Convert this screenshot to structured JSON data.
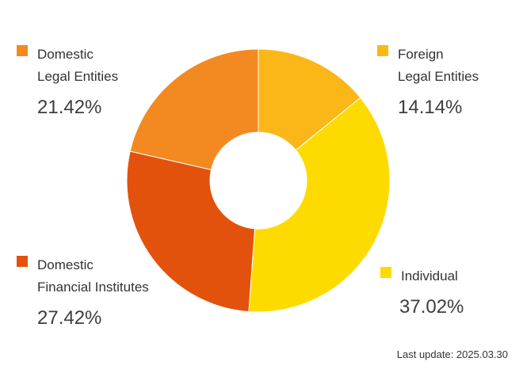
{
  "chart_data": {
    "type": "pie",
    "style": "donut",
    "categories": [
      "Foreign Legal Entities",
      "Individual",
      "Domestic Financial Institutes",
      "Domestic Legal Entities"
    ],
    "values": [
      14.14,
      37.02,
      27.42,
      21.42
    ],
    "value_labels": [
      "14.14%",
      "37.02%",
      "27.42%",
      "21.42%"
    ],
    "colors": [
      "#FBB717",
      "#FEDB00",
      "#E2520C",
      "#F38A21"
    ],
    "start_angle_deg": 0,
    "direction": "clockwise",
    "legend_placement": "around"
  },
  "legend": {
    "domestic_legal": {
      "line1": "Domestic",
      "line2": "Legal Entities",
      "pct": "21.42%",
      "color": "#F38A21"
    },
    "foreign_legal": {
      "line1": "Foreign",
      "line2": "Legal Entities",
      "pct": "14.14%",
      "color": "#FBB717"
    },
    "domestic_financial": {
      "line1": "Domestic",
      "line2": "Financial Institutes",
      "pct": "27.42%",
      "color": "#E2520C"
    },
    "individual": {
      "line1": "Individual",
      "pct": "37.02%",
      "color": "#FEDB00"
    }
  },
  "footer": {
    "last_update": "Last update: 2025.03.30"
  }
}
